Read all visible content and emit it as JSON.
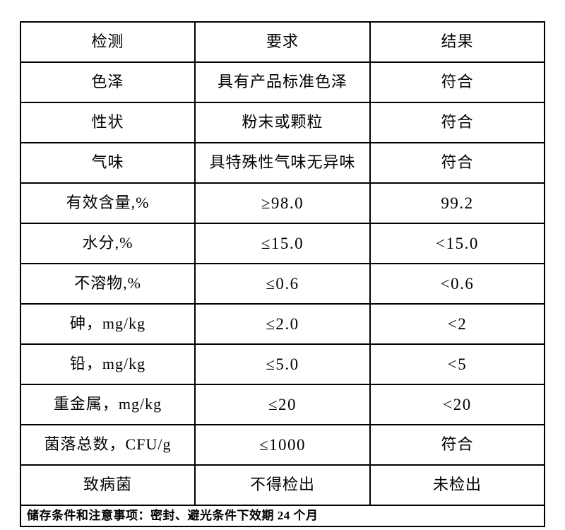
{
  "table": {
    "headers": {
      "test": "检测",
      "requirement": "要求",
      "result": "结果"
    },
    "rows": [
      {
        "test": "色泽",
        "requirement": "具有产品标准色泽",
        "result": "符合"
      },
      {
        "test": "性状",
        "requirement": "粉末或颗粒",
        "result": "符合"
      },
      {
        "test": "气味",
        "requirement": "具特殊性气味无异味",
        "result": "符合"
      },
      {
        "test": "有效含量,%",
        "requirement": "≥98.0",
        "result": "99.2"
      },
      {
        "test": "水分,%",
        "requirement": "≤15.0",
        "result": "<15.0"
      },
      {
        "test": "不溶物,%",
        "requirement": "≤0.6",
        "result": "<0.6"
      },
      {
        "test": "砷，mg/kg",
        "requirement": "≤2.0",
        "result": "<2"
      },
      {
        "test": "铅，mg/kg",
        "requirement": "≤5.0",
        "result": "<5"
      },
      {
        "test": "重金属，mg/kg",
        "requirement": "≤20",
        "result": "<20"
      },
      {
        "test": "菌落总数，CFU/g",
        "requirement": "≤1000",
        "result": "符合"
      },
      {
        "test": "致病菌",
        "requirement": "不得检出",
        "result": "未检出"
      }
    ],
    "footer": "储存条件和注意事项：密封、避光条件下效期 24 个月"
  },
  "colors": {
    "border": "#000000",
    "text": "#000000",
    "background": "#ffffff"
  }
}
